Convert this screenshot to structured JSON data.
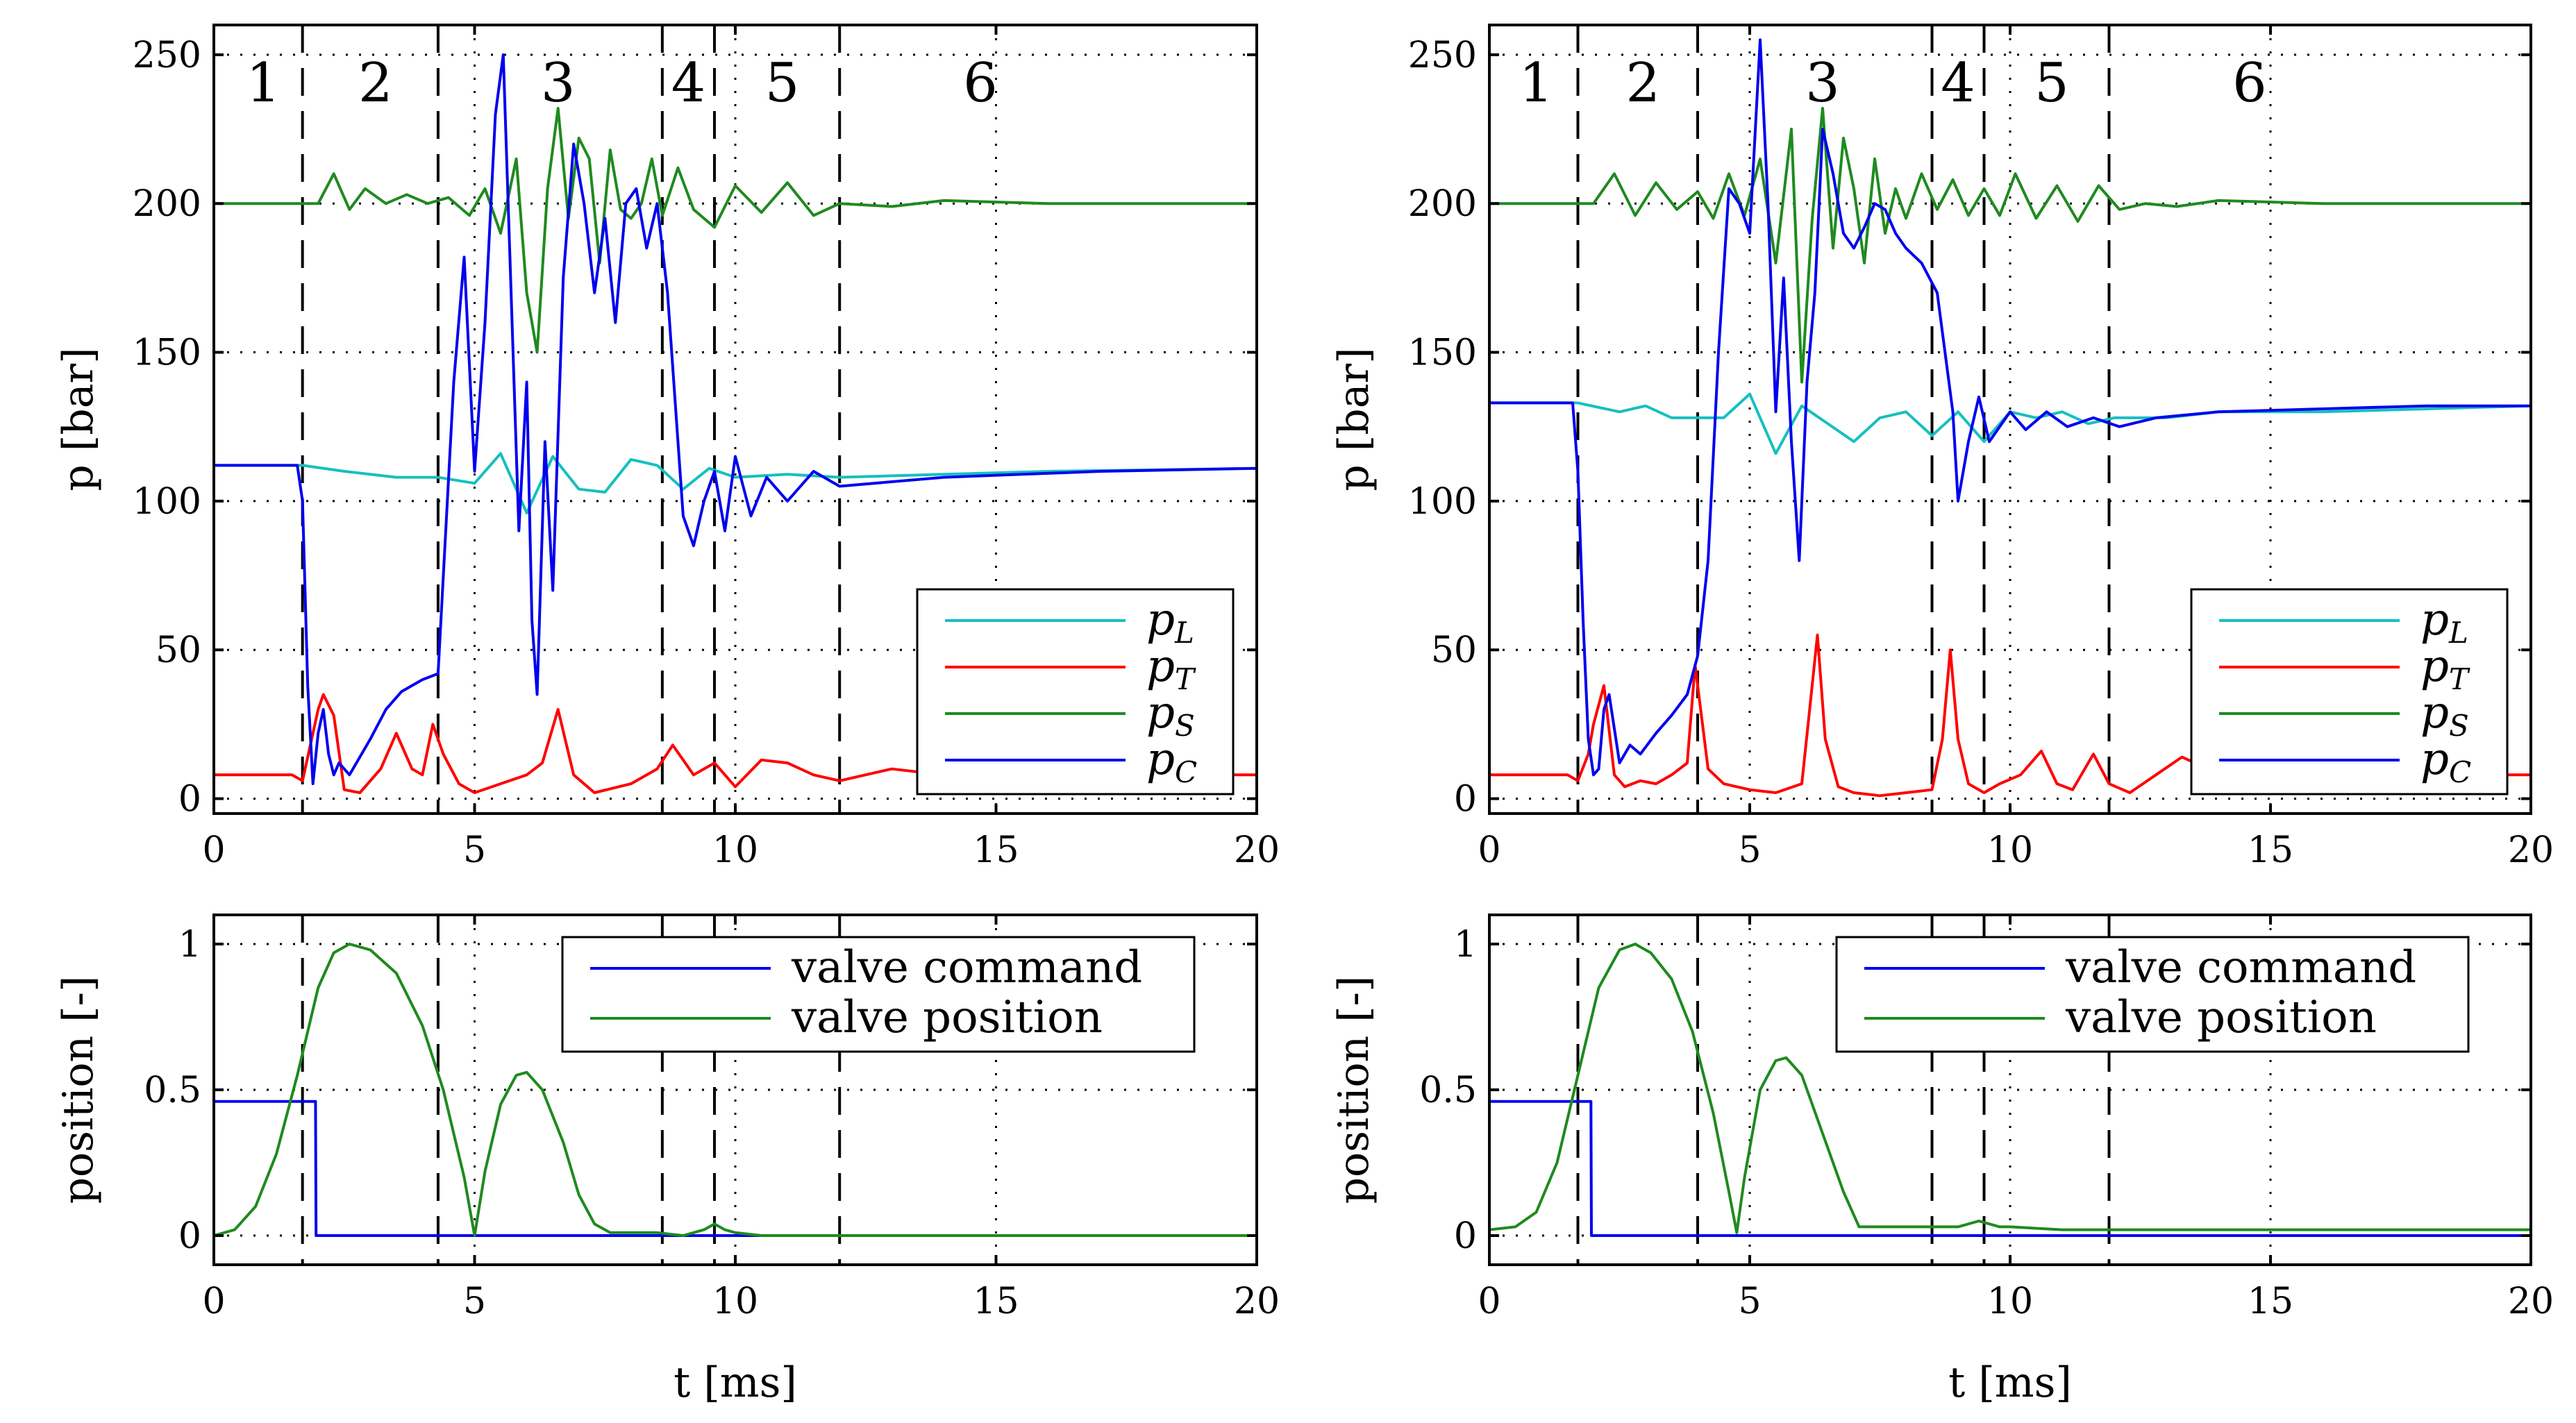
{
  "chart_data": [
    {
      "id": "top-left",
      "type": "line",
      "ylabel": "p [bar]",
      "xlabel": "",
      "xlim": [
        0,
        20
      ],
      "ylim": [
        -5,
        260
      ],
      "xticks": [
        0,
        5,
        10,
        15,
        20
      ],
      "yticks": [
        0,
        50,
        100,
        150,
        200,
        250
      ],
      "grid": true,
      "legend_position": "bottom-right",
      "phase_lines": [
        1.7,
        4.3,
        8.6,
        9.6,
        12.0
      ],
      "phase_labels": [
        {
          "label": "1",
          "x": 0.95
        },
        {
          "label": "2",
          "x": 3.1
        },
        {
          "label": "3",
          "x": 6.6
        },
        {
          "label": "4",
          "x": 9.1
        },
        {
          "label": "5",
          "x": 10.9
        },
        {
          "label": "6",
          "x": 14.7
        }
      ],
      "series": [
        {
          "name": "p",
          "sub": "L",
          "color": "#17bfbf",
          "x": [
            0,
            1.7,
            2.5,
            3.5,
            4.3,
            5.0,
            5.5,
            6.0,
            6.5,
            7.0,
            7.5,
            8.0,
            8.5,
            9.0,
            9.5,
            10.0,
            11,
            12,
            14,
            16,
            20
          ],
          "y": [
            112,
            112,
            110,
            108,
            108,
            106,
            116,
            96,
            115,
            104,
            103,
            114,
            112,
            104,
            111,
            108,
            109,
            108,
            109,
            110,
            111
          ]
        },
        {
          "name": "p",
          "sub": "T",
          "color": "#ff0000",
          "x": [
            0,
            1.5,
            1.7,
            2.0,
            2.1,
            2.3,
            2.5,
            2.8,
            3.2,
            3.5,
            3.8,
            4.0,
            4.2,
            4.4,
            4.7,
            5.0,
            5.5,
            6.0,
            6.3,
            6.6,
            6.9,
            7.3,
            8.0,
            8.5,
            8.8,
            9.2,
            9.6,
            10.0,
            10.5,
            11.0,
            11.5,
            12.0,
            13.0,
            14.0,
            15.0,
            17.0,
            20.0
          ],
          "y": [
            8,
            8,
            6,
            30,
            35,
            28,
            3,
            2,
            10,
            22,
            10,
            8,
            25,
            15,
            5,
            2,
            5,
            8,
            12,
            30,
            8,
            2,
            5,
            10,
            18,
            8,
            12,
            4,
            13,
            12,
            8,
            6,
            10,
            8,
            9,
            8,
            8
          ]
        },
        {
          "name": "p",
          "sub": "S",
          "color": "#1f8a1f",
          "x": [
            0,
            1.5,
            2.0,
            2.3,
            2.6,
            2.9,
            3.3,
            3.7,
            4.1,
            4.5,
            4.9,
            5.2,
            5.5,
            5.8,
            6.0,
            6.2,
            6.4,
            6.6,
            6.8,
            7.0,
            7.2,
            7.4,
            7.6,
            7.8,
            8.0,
            8.2,
            8.4,
            8.6,
            8.9,
            9.2,
            9.6,
            10.0,
            10.5,
            11.0,
            11.5,
            12.0,
            13.0,
            14.0,
            16.0,
            20.0
          ],
          "y": [
            200,
            200,
            200,
            210,
            198,
            205,
            200,
            203,
            200,
            202,
            196,
            205,
            190,
            215,
            170,
            150,
            205,
            232,
            195,
            222,
            215,
            180,
            218,
            198,
            195,
            200,
            215,
            196,
            212,
            198,
            192,
            206,
            197,
            207,
            196,
            200,
            199,
            201,
            200,
            200
          ]
        },
        {
          "name": "p",
          "sub": "C",
          "color": "#0000ee",
          "x": [
            0,
            1.5,
            1.6,
            1.7,
            1.8,
            1.9,
            2.0,
            2.1,
            2.2,
            2.3,
            2.4,
            2.6,
            2.8,
            3.0,
            3.3,
            3.6,
            4.0,
            4.3,
            4.6,
            4.8,
            5.0,
            5.2,
            5.4,
            5.55,
            5.7,
            5.85,
            6.0,
            6.1,
            6.2,
            6.35,
            6.5,
            6.7,
            6.9,
            7.1,
            7.3,
            7.5,
            7.7,
            7.9,
            8.1,
            8.3,
            8.5,
            8.7,
            8.9,
            9.0,
            9.2,
            9.4,
            9.6,
            9.8,
            10.0,
            10.3,
            10.6,
            11.0,
            11.5,
            12.0,
            14.0,
            17.0,
            20.0
          ],
          "y": [
            112,
            112,
            112,
            100,
            38,
            5,
            22,
            30,
            15,
            8,
            12,
            8,
            14,
            20,
            30,
            36,
            40,
            42,
            140,
            182,
            110,
            160,
            230,
            250,
            170,
            90,
            140,
            60,
            35,
            120,
            70,
            175,
            220,
            200,
            170,
            195,
            160,
            200,
            205,
            185,
            200,
            170,
            120,
            95,
            85,
            100,
            110,
            90,
            115,
            95,
            108,
            100,
            110,
            105,
            108,
            110,
            111
          ]
        }
      ]
    },
    {
      "id": "top-right",
      "type": "line",
      "ylabel": "p [bar]",
      "xlabel": "",
      "xlim": [
        0,
        20
      ],
      "ylim": [
        -5,
        260
      ],
      "xticks": [
        0,
        5,
        10,
        15,
        20
      ],
      "yticks": [
        0,
        50,
        100,
        150,
        200,
        250
      ],
      "grid": true,
      "legend_position": "bottom-right",
      "phase_lines": [
        1.7,
        4.0,
        8.5,
        9.5,
        11.9
      ],
      "phase_labels": [
        {
          "label": "1",
          "x": 0.9
        },
        {
          "label": "2",
          "x": 2.95
        },
        {
          "label": "3",
          "x": 6.4
        },
        {
          "label": "4",
          "x": 9.0
        },
        {
          "label": "5",
          "x": 10.8
        },
        {
          "label": "6",
          "x": 14.6
        }
      ],
      "series": [
        {
          "name": "p",
          "sub": "L",
          "color": "#17bfbf",
          "x": [
            0,
            1.7,
            2.5,
            3.0,
            3.5,
            4.0,
            4.5,
            5.0,
            5.5,
            6.0,
            6.5,
            7.0,
            7.5,
            8.0,
            8.5,
            9.0,
            9.5,
            10.0,
            10.5,
            11.0,
            11.5,
            12.0,
            13,
            14,
            16,
            20
          ],
          "y": [
            133,
            133,
            130,
            132,
            128,
            128,
            128,
            136,
            116,
            132,
            126,
            120,
            128,
            130,
            122,
            130,
            120,
            130,
            128,
            130,
            126,
            128,
            128,
            130,
            130,
            132
          ]
        },
        {
          "name": "p",
          "sub": "T",
          "color": "#ff0000",
          "x": [
            0,
            1.5,
            1.7,
            1.9,
            2.0,
            2.2,
            2.4,
            2.6,
            2.9,
            3.2,
            3.5,
            3.8,
            3.95,
            4.2,
            4.5,
            5.0,
            5.5,
            6.0,
            6.15,
            6.3,
            6.45,
            6.7,
            7.0,
            7.5,
            8.0,
            8.5,
            8.7,
            8.85,
            9.0,
            9.2,
            9.5,
            9.8,
            10.2,
            10.6,
            10.9,
            11.2,
            11.6,
            11.9,
            12.3,
            12.8,
            13.3,
            13.8,
            15,
            17,
            20
          ],
          "y": [
            8,
            8,
            6,
            15,
            25,
            38,
            8,
            4,
            6,
            5,
            8,
            12,
            45,
            10,
            5,
            3,
            2,
            5,
            30,
            55,
            20,
            4,
            2,
            1,
            2,
            3,
            20,
            50,
            20,
            5,
            2,
            5,
            8,
            16,
            5,
            3,
            15,
            5,
            2,
            8,
            14,
            10,
            8,
            8,
            8
          ]
        },
        {
          "name": "p",
          "sub": "S",
          "color": "#1f8a1f",
          "x": [
            0,
            1.5,
            2.0,
            2.4,
            2.8,
            3.2,
            3.6,
            4.0,
            4.3,
            4.6,
            4.9,
            5.2,
            5.5,
            5.8,
            6.0,
            6.2,
            6.4,
            6.6,
            6.8,
            7.0,
            7.2,
            7.4,
            7.6,
            7.8,
            8.0,
            8.3,
            8.6,
            8.9,
            9.2,
            9.5,
            9.8,
            10.1,
            10.5,
            10.9,
            11.3,
            11.7,
            12.1,
            12.6,
            13.2,
            14,
            16,
            20
          ],
          "y": [
            200,
            200,
            200,
            210,
            196,
            207,
            198,
            204,
            195,
            210,
            196,
            215,
            180,
            225,
            140,
            195,
            232,
            185,
            222,
            205,
            180,
            215,
            190,
            205,
            195,
            210,
            198,
            208,
            196,
            205,
            196,
            210,
            195,
            206,
            194,
            206,
            198,
            200,
            199,
            201,
            200,
            200
          ]
        },
        {
          "name": "p",
          "sub": "C",
          "color": "#0000ee",
          "x": [
            0,
            1.5,
            1.6,
            1.7,
            1.8,
            1.9,
            2.0,
            2.1,
            2.2,
            2.3,
            2.5,
            2.7,
            2.9,
            3.2,
            3.5,
            3.8,
            4.0,
            4.2,
            4.4,
            4.6,
            4.8,
            5.0,
            5.2,
            5.35,
            5.5,
            5.65,
            5.8,
            5.95,
            6.1,
            6.25,
            6.4,
            6.6,
            6.8,
            7.0,
            7.2,
            7.4,
            7.6,
            7.8,
            8.0,
            8.3,
            8.6,
            8.9,
            9.0,
            9.2,
            9.4,
            9.6,
            9.8,
            10.0,
            10.3,
            10.7,
            11.1,
            11.6,
            12.1,
            12.8,
            14,
            16,
            18,
            20
          ],
          "y": [
            133,
            133,
            133,
            110,
            60,
            20,
            8,
            10,
            30,
            35,
            12,
            18,
            15,
            22,
            28,
            35,
            48,
            80,
            150,
            205,
            200,
            190,
            255,
            200,
            130,
            175,
            120,
            80,
            140,
            170,
            225,
            210,
            190,
            185,
            192,
            200,
            198,
            190,
            185,
            180,
            170,
            130,
            100,
            120,
            135,
            120,
            125,
            130,
            124,
            130,
            125,
            128,
            125,
            128,
            130,
            131,
            132,
            132
          ]
        }
      ]
    },
    {
      "id": "bottom-left",
      "type": "line",
      "ylabel": "position [-]",
      "xlabel": "t [ms]",
      "xlim": [
        0,
        20
      ],
      "ylim": [
        -0.1,
        1.1
      ],
      "xticks": [
        0,
        5,
        10,
        15,
        20
      ],
      "yticks": [
        0,
        0.5,
        1
      ],
      "grid": true,
      "legend_position": "top-right",
      "phase_lines": [
        1.7,
        4.3,
        8.6,
        9.6,
        12.0
      ],
      "series": [
        {
          "name": "valve command",
          "color": "#0000ee",
          "x": [
            0,
            1.95,
            1.96,
            20
          ],
          "y": [
            0.46,
            0.46,
            0,
            0
          ]
        },
        {
          "name": "valve position",
          "color": "#1f8a1f",
          "x": [
            0,
            0.4,
            0.8,
            1.2,
            1.6,
            2.0,
            2.3,
            2.6,
            3.0,
            3.5,
            4.0,
            4.4,
            4.8,
            5.0,
            5.2,
            5.5,
            5.8,
            6.0,
            6.3,
            6.7,
            7.0,
            7.3,
            7.6,
            8.0,
            8.5,
            9.0,
            9.4,
            9.6,
            9.8,
            10.0,
            10.5,
            11,
            12,
            15,
            20
          ],
          "y": [
            0,
            0.02,
            0.1,
            0.28,
            0.55,
            0.85,
            0.97,
            1.0,
            0.98,
            0.9,
            0.72,
            0.5,
            0.2,
            0,
            0.22,
            0.45,
            0.55,
            0.56,
            0.5,
            0.32,
            0.14,
            0.04,
            0.01,
            0.01,
            0.01,
            0,
            0.02,
            0.04,
            0.02,
            0.01,
            0,
            0,
            0,
            0,
            0
          ]
        }
      ]
    },
    {
      "id": "bottom-right",
      "type": "line",
      "ylabel": "position [-]",
      "xlabel": "t [ms]",
      "xlim": [
        0,
        20
      ],
      "ylim": [
        -0.1,
        1.1
      ],
      "xticks": [
        0,
        5,
        10,
        15,
        20
      ],
      "yticks": [
        0,
        0.5,
        1
      ],
      "grid": true,
      "legend_position": "top-right",
      "phase_lines": [
        1.7,
        4.0,
        8.5,
        9.5,
        11.9
      ],
      "series": [
        {
          "name": "valve command",
          "color": "#0000ee",
          "x": [
            0,
            1.95,
            1.96,
            20
          ],
          "y": [
            0.46,
            0.46,
            0,
            0
          ]
        },
        {
          "name": "valve position",
          "color": "#1f8a1f",
          "x": [
            0,
            0.5,
            0.9,
            1.3,
            1.7,
            2.1,
            2.5,
            2.8,
            3.1,
            3.5,
            3.9,
            4.3,
            4.6,
            4.75,
            4.9,
            5.2,
            5.5,
            5.7,
            6.0,
            6.4,
            6.8,
            7.1,
            7.5,
            8.0,
            8.5,
            9.0,
            9.4,
            9.6,
            9.8,
            10.0,
            11,
            12,
            15,
            20
          ],
          "y": [
            0.02,
            0.03,
            0.08,
            0.25,
            0.55,
            0.85,
            0.98,
            1.0,
            0.97,
            0.88,
            0.7,
            0.42,
            0.15,
            0.01,
            0.2,
            0.5,
            0.6,
            0.61,
            0.55,
            0.35,
            0.15,
            0.03,
            0.03,
            0.03,
            0.03,
            0.03,
            0.05,
            0.04,
            0.03,
            0.03,
            0.02,
            0.02,
            0.02,
            0.02
          ]
        }
      ]
    }
  ]
}
